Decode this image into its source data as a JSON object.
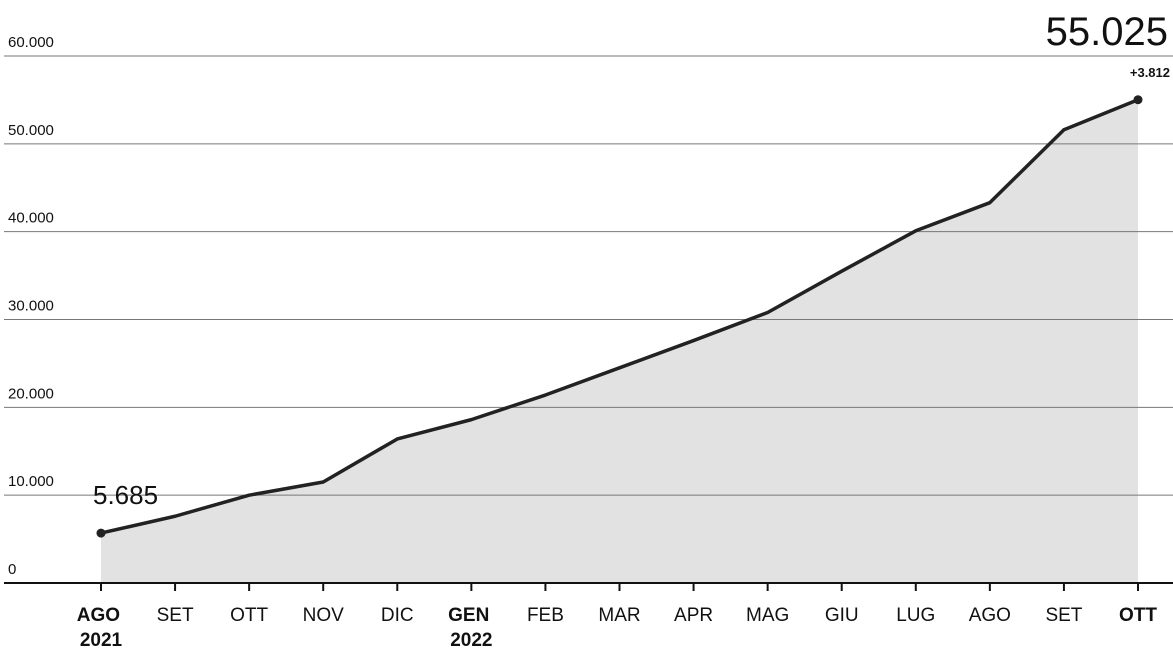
{
  "chart_data": {
    "type": "area",
    "categories": [
      "AGO 2021",
      "SET",
      "OTT",
      "NOV",
      "DIC",
      "GEN 2022",
      "FEB",
      "MAR",
      "APR",
      "MAG",
      "GIU",
      "LUG",
      "AGO",
      "SET",
      "OTT"
    ],
    "values": [
      5685,
      7600,
      10000,
      11500,
      16400,
      18600,
      21400,
      24500,
      27600,
      30800,
      35500,
      40100,
      43300,
      51600,
      55025
    ],
    "value_labels": [
      "5.685",
      null,
      null,
      null,
      null,
      null,
      null,
      null,
      null,
      null,
      null,
      null,
      null,
      null,
      "55.025"
    ],
    "annotations": [
      {
        "text": "+3.812"
      }
    ],
    "color": "#222222",
    "fill": "#e2e2e2",
    "ylim": [
      0,
      60000
    ],
    "yticks": [
      0,
      {
        "value": 10000,
        "label": "10.000"
      },
      {
        "value": 20000,
        "label": "20.000"
      },
      {
        "value": 30000,
        "label": "30.000"
      },
      {
        "value": 40000,
        "label": "40.000"
      },
      {
        "value": 50000,
        "label": "50.000"
      },
      {
        "value": 60000,
        "label": "60.000"
      }
    ],
    "grid": true
  }
}
